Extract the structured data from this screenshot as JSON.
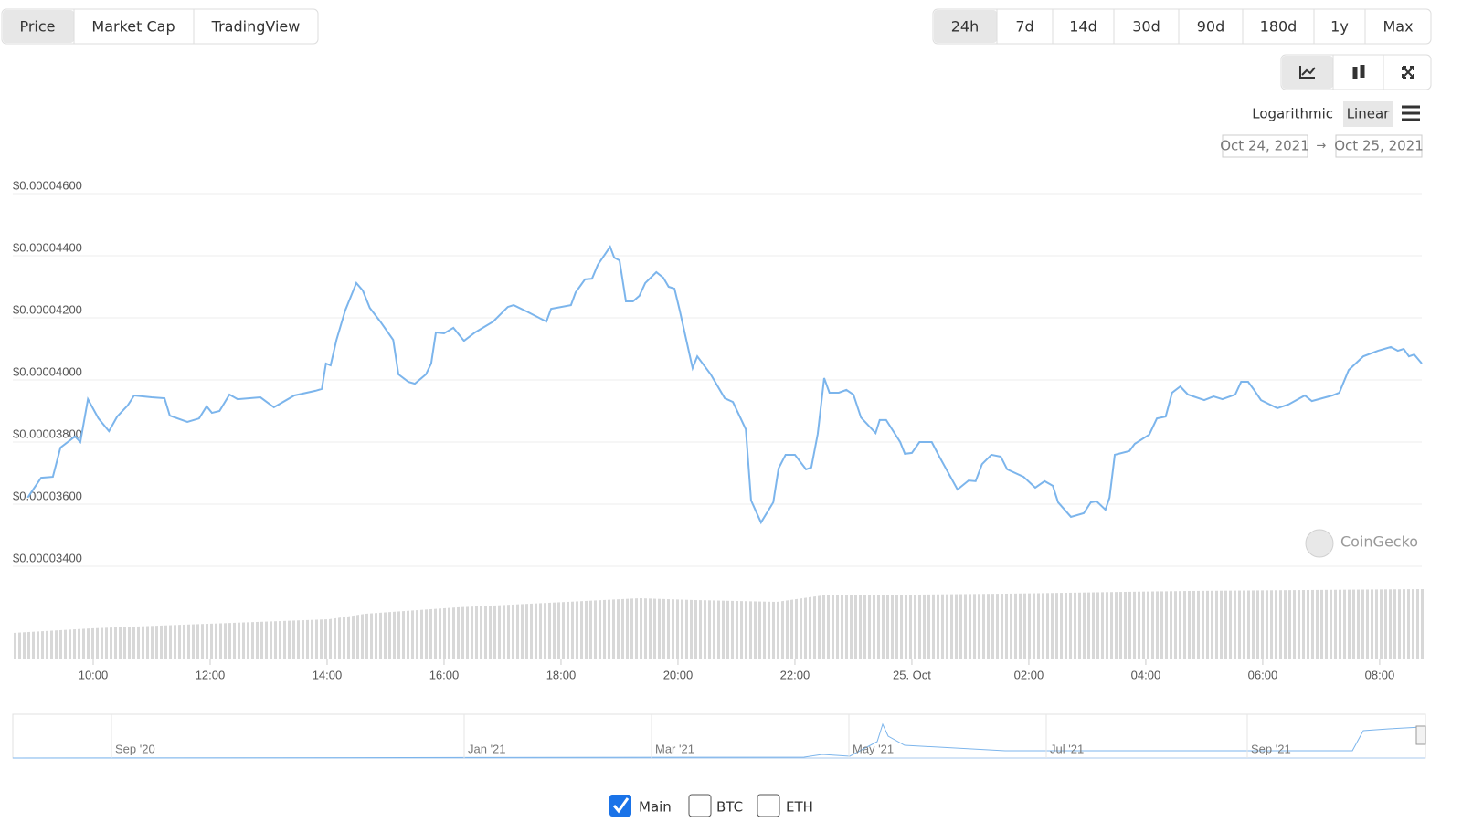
{
  "tabs": [
    "Price",
    "Market Cap",
    "TradingView"
  ],
  "ranges": [
    "24h",
    "7d",
    "14d",
    "30d",
    "90d",
    "180d",
    "1y",
    "Max"
  ],
  "scale_options": [
    "Logarithmic",
    "Linear"
  ],
  "date_from": "Oct 24, 2021",
  "date_arrow": "→",
  "date_to": "Oct 25, 2021",
  "watermark": "CoinGecko",
  "navigator_labels": [
    "Sep '20",
    "Jan '21",
    "Mar '21",
    "May '21",
    "Jul '21",
    "Sep '21"
  ],
  "legend": [
    "Main",
    "BTC",
    "ETH"
  ],
  "chart_data": {
    "type": "line",
    "grid": true,
    "xlim": [
      8.625,
      32.72
    ],
    "xticks": [
      {
        "value": 10,
        "label": "10:00"
      },
      {
        "value": 12,
        "label": "12:00"
      },
      {
        "value": 14,
        "label": "14:00"
      },
      {
        "value": 16,
        "label": "16:00"
      },
      {
        "value": 18,
        "label": "18:00"
      },
      {
        "value": 20,
        "label": "20:00"
      },
      {
        "value": 22,
        "label": "22:00"
      },
      {
        "value": 24,
        "label": "25. Oct"
      },
      {
        "value": 26,
        "label": "02:00"
      },
      {
        "value": 28,
        "label": "04:00"
      },
      {
        "value": 30,
        "label": "06:00"
      },
      {
        "value": 32,
        "label": "08:00"
      }
    ],
    "ylim": [
      3.4e-05,
      4.6e-05
    ],
    "yticks": [
      {
        "value": 3.4e-05,
        "label": "$0.00003400"
      },
      {
        "value": 3.6e-05,
        "label": "$0.00003600"
      },
      {
        "value": 3.8e-05,
        "label": "$0.00003800"
      },
      {
        "value": 4e-05,
        "label": "$0.00004000"
      },
      {
        "value": 4.2e-05,
        "label": "$0.00004200"
      },
      {
        "value": 4.4e-05,
        "label": "$0.00004400"
      },
      {
        "value": 4.6e-05,
        "label": "$0.00004600"
      }
    ],
    "x": [
      8.88,
      9.11,
      9.31,
      9.44,
      9.69,
      9.78,
      9.91,
      10.09,
      10.27,
      10.41,
      10.59,
      10.7,
      11.0,
      11.22,
      11.31,
      11.61,
      11.81,
      11.94,
      12.03,
      12.16,
      12.33,
      12.47,
      12.86,
      13.09,
      13.44,
      13.8,
      13.91,
      13.98,
      14.06,
      14.16,
      14.31,
      14.5,
      14.61,
      14.73,
      14.91,
      15.13,
      15.22,
      15.39,
      15.5,
      15.69,
      15.78,
      15.86,
      16.0,
      16.16,
      16.34,
      16.53,
      16.84,
      17.09,
      17.19,
      17.44,
      17.75,
      17.83,
      18.17,
      18.25,
      18.41,
      18.53,
      18.63,
      18.84,
      18.91,
      19.0,
      19.11,
      19.23,
      19.34,
      19.44,
      19.63,
      19.75,
      19.84,
      19.94,
      20.03,
      20.25,
      20.33,
      20.56,
      20.8,
      20.94,
      21.16,
      21.25,
      21.42,
      21.63,
      21.72,
      21.84,
      22.0,
      22.19,
      22.28,
      22.39,
      22.5,
      22.59,
      22.75,
      22.88,
      23.0,
      23.13,
      23.38,
      23.45,
      23.56,
      23.8,
      23.88,
      24.0,
      24.13,
      24.34,
      24.47,
      24.78,
      24.97,
      25.09,
      25.2,
      25.36,
      25.52,
      25.63,
      25.91,
      26.11,
      26.27,
      26.41,
      26.5,
      26.72,
      26.94,
      27.06,
      27.16,
      27.31,
      27.38,
      27.47,
      27.72,
      27.81,
      28.06,
      28.19,
      28.34,
      28.45,
      28.59,
      28.72,
      29.0,
      29.16,
      29.31,
      29.53,
      29.63,
      29.75,
      29.84,
      29.97,
      30.25,
      30.44,
      30.72,
      30.84,
      31.19,
      31.31,
      31.47,
      31.72,
      31.97,
      32.19,
      32.31,
      32.41,
      32.5,
      32.59,
      32.72
    ],
    "series": [
      {
        "color": "#7cb5ec",
        "values": [
          3.621e-05,
          3.685e-05,
          3.688e-05,
          3.782e-05,
          3.818e-05,
          3.8e-05,
          3.938e-05,
          3.876e-05,
          3.835e-05,
          3.882e-05,
          3.918e-05,
          3.95e-05,
          3.944e-05,
          3.941e-05,
          3.885e-05,
          3.865e-05,
          3.876e-05,
          3.915e-05,
          3.894e-05,
          3.9e-05,
          3.953e-05,
          3.938e-05,
          3.944e-05,
          3.912e-05,
          3.95e-05,
          3.965e-05,
          3.971e-05,
          4.053e-05,
          4.047e-05,
          4.129e-05,
          4.224e-05,
          4.312e-05,
          4.288e-05,
          4.232e-05,
          4.188e-05,
          4.129e-05,
          4.018e-05,
          3.994e-05,
          3.988e-05,
          4.018e-05,
          4.053e-05,
          4.153e-05,
          4.15e-05,
          4.168e-05,
          4.126e-05,
          4.153e-05,
          4.188e-05,
          4.235e-05,
          4.241e-05,
          4.218e-05,
          4.188e-05,
          4.229e-05,
          4.241e-05,
          4.282e-05,
          4.324e-05,
          4.326e-05,
          4.371e-05,
          4.429e-05,
          4.394e-05,
          4.385e-05,
          4.253e-05,
          4.253e-05,
          4.271e-05,
          4.312e-05,
          4.347e-05,
          4.329e-05,
          4.3e-05,
          4.294e-05,
          4.224e-05,
          4.038e-05,
          4.076e-05,
          4.018e-05,
          3.941e-05,
          3.929e-05,
          3.841e-05,
          3.612e-05,
          3.541e-05,
          3.606e-05,
          3.715e-05,
          3.759e-05,
          3.759e-05,
          3.712e-05,
          3.718e-05,
          3.826e-05,
          4.006e-05,
          3.959e-05,
          3.959e-05,
          3.968e-05,
          3.953e-05,
          3.879e-05,
          3.829e-05,
          3.871e-05,
          3.871e-05,
          3.8e-05,
          3.762e-05,
          3.765e-05,
          3.8e-05,
          3.8e-05,
          3.753e-05,
          3.647e-05,
          3.676e-05,
          3.674e-05,
          3.729e-05,
          3.759e-05,
          3.753e-05,
          3.712e-05,
          3.688e-05,
          3.653e-05,
          3.674e-05,
          3.659e-05,
          3.606e-05,
          3.559e-05,
          3.571e-05,
          3.606e-05,
          3.609e-05,
          3.582e-05,
          3.621e-05,
          3.759e-05,
          3.771e-05,
          3.794e-05,
          3.824e-05,
          3.876e-05,
          3.882e-05,
          3.959e-05,
          3.979e-05,
          3.953e-05,
          3.935e-05,
          3.947e-05,
          3.938e-05,
          3.953e-05,
          3.994e-05,
          3.994e-05,
          3.971e-05,
          3.935e-05,
          3.909e-05,
          3.921e-05,
          3.95e-05,
          3.932e-05,
          3.95e-05,
          3.959e-05,
          4.032e-05,
          4.076e-05,
          4.094e-05,
          4.106e-05,
          4.094e-05,
          4.1e-05,
          4.076e-05,
          4.082e-05,
          4.053e-05
        ]
      }
    ]
  }
}
